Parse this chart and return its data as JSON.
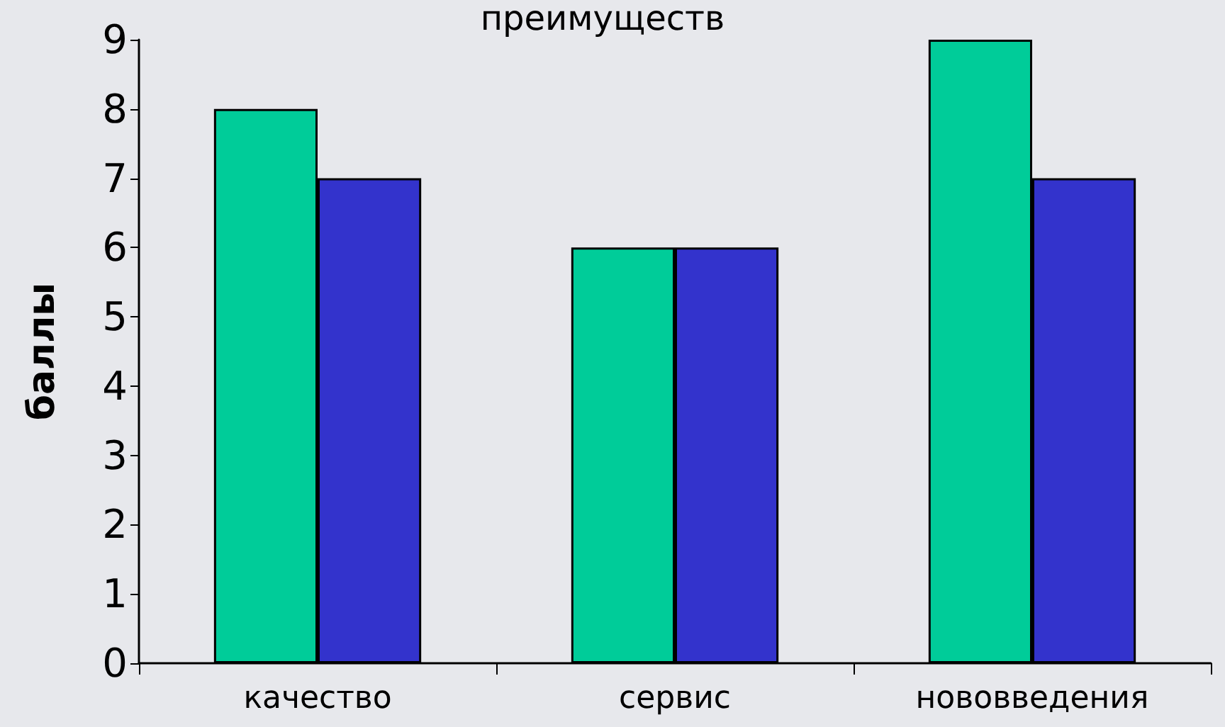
{
  "chart_data": {
    "type": "bar",
    "title": "преимуществ",
    "ylabel": "баллы",
    "categories": [
      "качество",
      "сервис",
      "нововведения"
    ],
    "series": [
      {
        "color": "#00cc99",
        "values": [
          8,
          6,
          9
        ]
      },
      {
        "color": "#3333cc",
        "values": [
          7,
          6,
          7
        ]
      }
    ],
    "ylim": [
      0,
      9
    ],
    "yticks": [
      0,
      1,
      2,
      3,
      4,
      5,
      6,
      7,
      8,
      9
    ],
    "grid": false
  }
}
